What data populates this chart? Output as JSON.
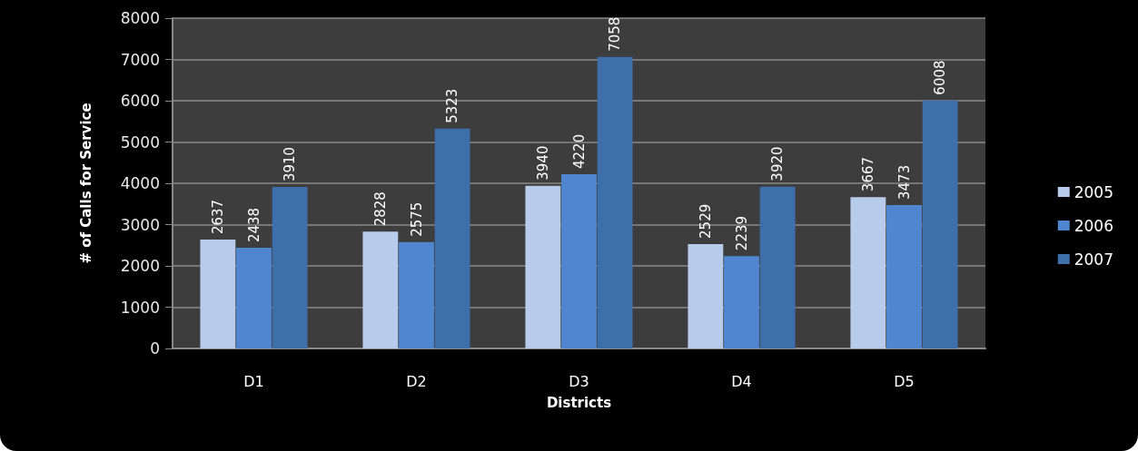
{
  "chart_data": {
    "type": "bar",
    "xlabel": "Districts",
    "ylabel": "# of Calls for Service",
    "categories": [
      "D1",
      "D2",
      "D3",
      "D4",
      "D5"
    ],
    "series": [
      {
        "name": "2005",
        "color": "#b9cbea",
        "values": [
          2637,
          2828,
          3940,
          2529,
          3667
        ]
      },
      {
        "name": "2006",
        "color": "#4f86cf",
        "values": [
          2438,
          2575,
          4220,
          2239,
          3473
        ]
      },
      {
        "name": "2007",
        "color": "#3f6fa9",
        "values": [
          3910,
          5323,
          7058,
          3920,
          6008
        ]
      }
    ],
    "ylim": [
      0,
      8000
    ],
    "yticks": [
      0,
      1000,
      2000,
      3000,
      4000,
      5000,
      6000,
      7000,
      8000
    ],
    "grid": "y",
    "legend": "right",
    "data_labels": true
  }
}
